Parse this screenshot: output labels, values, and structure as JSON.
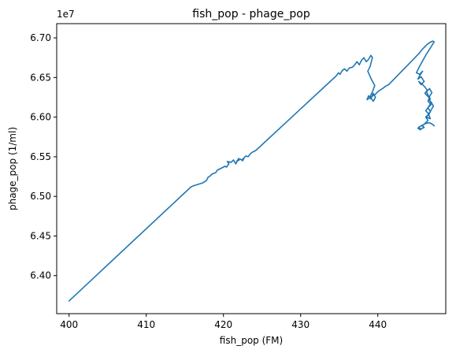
{
  "chart_data": {
    "type": "line",
    "title": "fish_pop - phage_pop",
    "xlabel": "fish_pop (FM)",
    "ylabel": "phage_pop (1/ml)",
    "y_exponent_label": "1e7",
    "xlim": [
      398.4,
      448.8
    ],
    "ylim": [
      6.352,
      6.718
    ],
    "x_ticks": [
      400,
      410,
      420,
      430,
      440
    ],
    "x_tick_labels": [
      "400",
      "410",
      "420",
      "430",
      "440"
    ],
    "y_ticks": [
      6.4,
      6.45,
      6.5,
      6.55,
      6.6,
      6.65,
      6.7
    ],
    "y_tick_labels": [
      "6.40",
      "6.45",
      "6.50",
      "6.55",
      "6.60",
      "6.65",
      "6.70"
    ],
    "grid": false,
    "line_color": "#1f77b4",
    "series": [
      {
        "x": [
          400.0,
          415.8,
          416.3,
          416.5,
          417.3,
          417.8,
          418.0,
          418.3,
          418.5,
          419.0,
          419.2,
          419.6,
          419.8,
          420.2,
          420.4,
          420.7,
          420.5,
          421.0,
          421.3,
          421.6,
          421.8,
          422.0,
          421.7,
          422.2,
          422.5,
          422.7,
          422.4,
          422.9,
          423.2,
          423.5,
          423.8,
          424.2,
          434.6,
          434.9,
          435.1,
          435.4,
          435.7,
          436.0,
          436.3,
          436.7,
          437.0,
          437.3,
          437.6,
          437.9,
          438.2,
          438.5,
          438.8,
          439.1,
          439.3,
          439.0,
          438.7,
          439.2,
          439.6,
          439.3,
          439.0,
          439.4,
          439.7,
          439.4,
          439.1,
          438.8,
          438.6,
          438.9,
          439.2,
          439.7,
          440.1,
          440.6,
          441.0,
          441.4,
          441.8,
          442.2,
          442.6,
          443.0,
          443.4,
          443.8,
          444.2,
          444.6,
          445.0,
          445.4,
          445.7,
          446.0,
          446.3,
          446.7,
          447.1,
          447.3,
          446.2,
          445.4,
          445.0,
          445.4,
          445.8,
          445.4,
          445.2,
          445.6,
          446.0,
          445.6,
          445.3,
          445.7,
          446.1,
          446.4,
          446.1,
          446.5,
          446.8,
          446.5,
          446.3,
          446.7,
          447.0,
          446.7,
          446.5,
          446.9,
          446.5,
          446.2,
          446.6,
          446.3,
          446.8,
          446.6,
          446.9,
          447.2,
          446.9,
          446.6,
          446.9,
          446.5,
          446.8,
          446.5,
          446.2,
          446.5,
          446.2,
          445.9,
          445.7,
          446.0,
          445.6,
          445.3,
          445.5,
          445.2,
          445.4,
          445.8,
          446.2,
          446.6,
          446.9,
          447.2,
          447.3
        ],
        "y": [
          6.368,
          6.512,
          6.514,
          6.5145,
          6.517,
          6.52,
          6.524,
          6.526,
          6.528,
          6.53,
          6.533,
          6.535,
          6.536,
          6.538,
          6.537,
          6.541,
          6.544,
          6.543,
          6.546,
          6.541,
          6.545,
          6.548,
          6.544,
          6.547,
          6.545,
          6.549,
          6.546,
          6.551,
          6.55,
          6.554,
          6.556,
          6.558,
          6.652,
          6.656,
          6.654,
          6.659,
          6.661,
          6.658,
          6.662,
          6.663,
          6.666,
          6.67,
          6.666,
          6.672,
          6.675,
          6.67,
          6.673,
          6.678,
          6.675,
          6.664,
          6.658,
          6.647,
          6.64,
          6.632,
          6.626,
          6.62,
          6.625,
          6.63,
          6.623,
          6.627,
          6.622,
          6.624,
          6.626,
          6.629,
          6.633,
          6.636,
          6.639,
          6.641,
          6.645,
          6.649,
          6.653,
          6.657,
          6.661,
          6.665,
          6.669,
          6.673,
          6.677,
          6.681,
          6.685,
          6.688,
          6.691,
          6.694,
          6.696,
          6.695,
          6.678,
          6.664,
          6.656,
          6.654,
          6.658,
          6.652,
          6.648,
          6.651,
          6.645,
          6.641,
          6.645,
          6.642,
          6.638,
          6.634,
          6.63,
          6.626,
          6.623,
          6.628,
          6.632,
          6.636,
          6.631,
          6.626,
          6.62,
          6.616,
          6.612,
          6.608,
          6.604,
          6.6,
          6.598,
          6.603,
          6.609,
          6.614,
          6.619,
          6.623,
          6.618,
          6.612,
          6.607,
          6.603,
          6.6,
          6.596,
          6.593,
          6.59,
          6.589,
          6.587,
          6.585,
          6.587,
          6.584,
          6.586,
          6.588,
          6.59,
          6.592,
          6.593,
          6.592,
          6.59,
          6.589
        ]
      }
    ]
  }
}
